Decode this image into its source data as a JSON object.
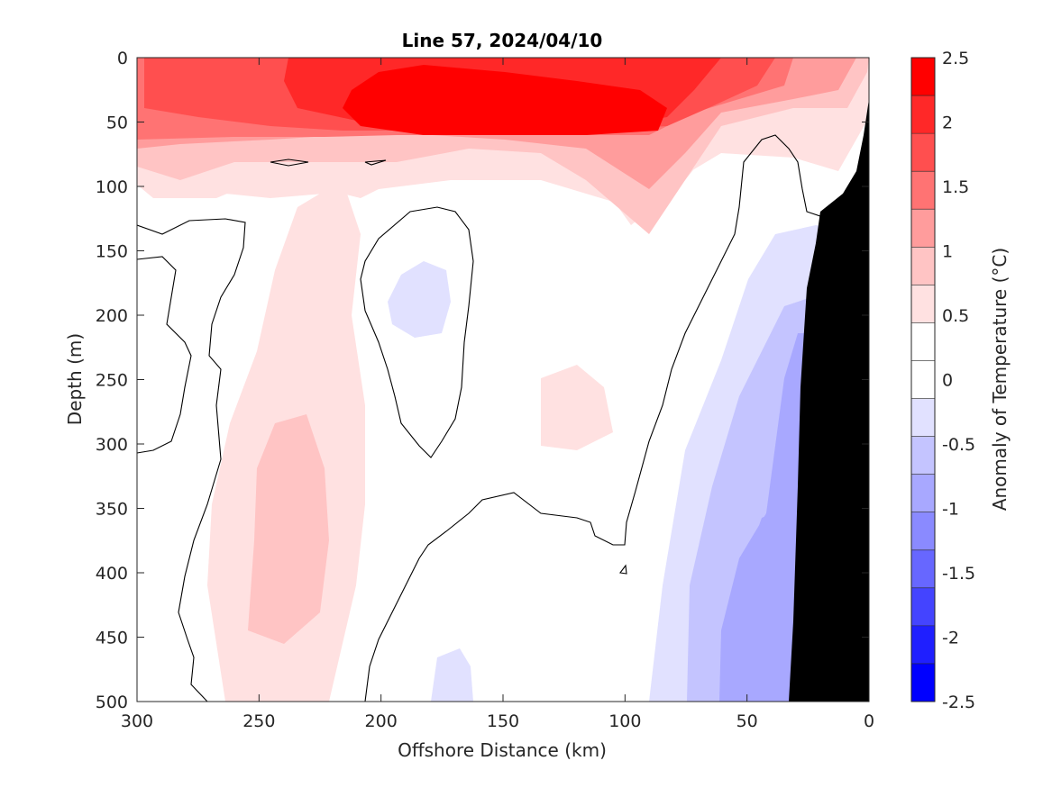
{
  "chart_data": {
    "type": "heatmap",
    "title": "Line 57, 2024/04/10",
    "xlabel": "Offshore Distance (km)",
    "ylabel": "Depth (m)",
    "colorbar_label": "Anomaly of Temperature (°C)",
    "xlim": [
      300,
      0
    ],
    "ylim": [
      500,
      0
    ],
    "x_ticks": [
      "300",
      "250",
      "200",
      "150",
      "100",
      "50",
      "0"
    ],
    "y_ticks": [
      "0",
      "50",
      "100",
      "150",
      "200",
      "250",
      "300",
      "350",
      "400",
      "450",
      "500"
    ],
    "colorbar_ticks": [
      "2.5",
      "2",
      "1.5",
      "1",
      "0.5",
      "0",
      "-0.5",
      "-1",
      "-1.5",
      "-2",
      "-2.5"
    ],
    "colorbar_range": [
      -2.5,
      2.5
    ],
    "colorbar_levels": [
      "#ff0000",
      "#ff2828",
      "#ff4f4f",
      "#ff7373",
      "#ff9c9c",
      "#ffc4c4",
      "#ffe1e1",
      "#ffffff",
      "#ffffff",
      "#e1e1ff",
      "#c4c4ff",
      "#a8a8ff",
      "#8a8aff",
      "#6767ff",
      "#4444ff",
      "#1f1fff",
      "#0000ff"
    ],
    "land_color": "#000000",
    "zero_contour_color": "#000000"
  }
}
